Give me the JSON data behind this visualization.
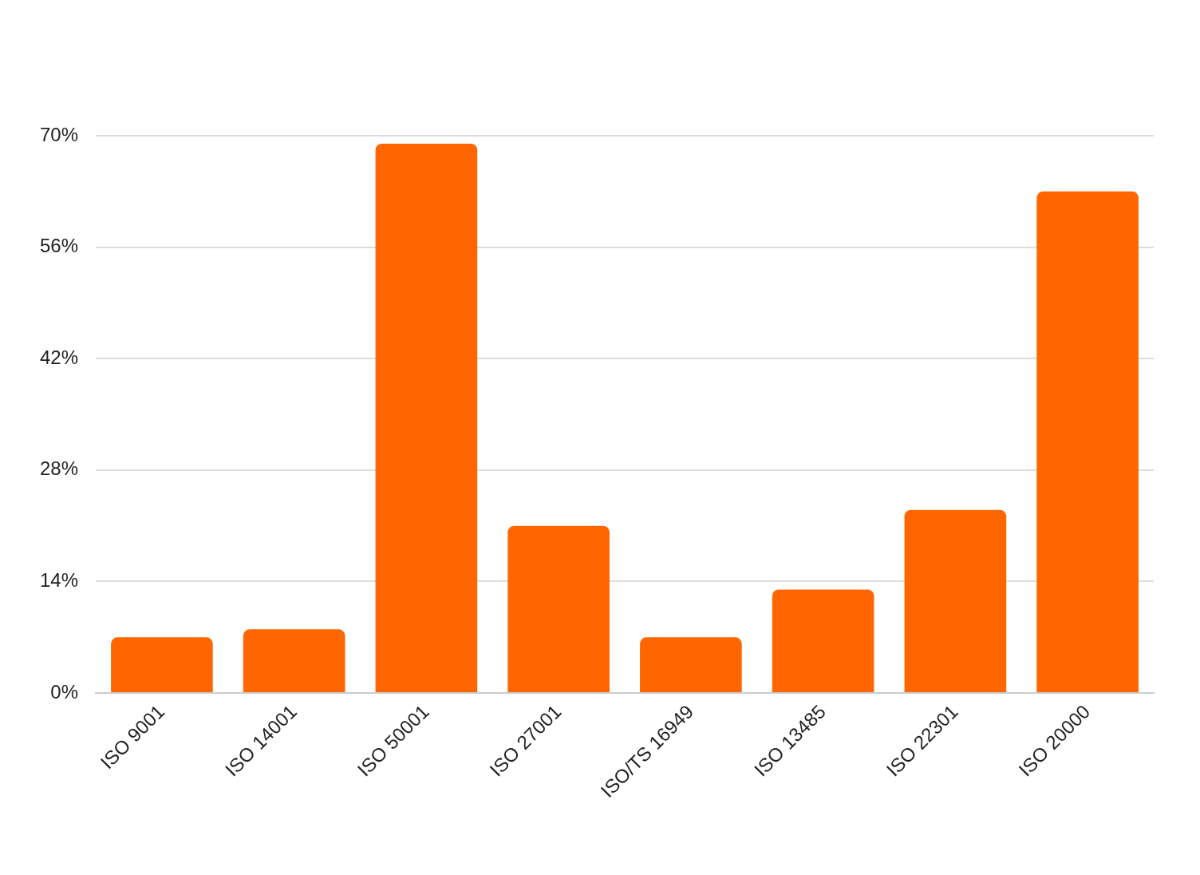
{
  "chart_data": {
    "type": "bar",
    "categories": [
      "ISO 9001",
      "ISO 14001",
      "ISO 50001",
      "ISO 27001",
      "ISO/TS 16949",
      "ISO 13485",
      "ISO 22301",
      "ISO 20000"
    ],
    "values": [
      7,
      8,
      69,
      21,
      7,
      13,
      23,
      63
    ],
    "color": "#ff6600",
    "ylim": [
      0,
      70
    ],
    "yticks": [
      {
        "value": 0,
        "label": "0%"
      },
      {
        "value": 14,
        "label": "14%"
      },
      {
        "value": 28,
        "label": "28%"
      },
      {
        "value": 42,
        "label": "42%"
      },
      {
        "value": 56,
        "label": "56%"
      },
      {
        "value": 70,
        "label": "70%"
      }
    ],
    "grid": "y"
  }
}
